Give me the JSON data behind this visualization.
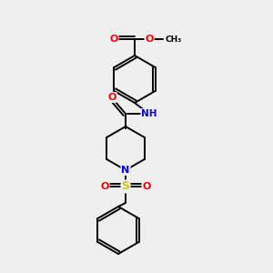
{
  "background_color": "#efefef",
  "bond_color": "#000000",
  "atom_colors": {
    "O": "#ff0000",
    "N": "#0000ff",
    "S": "#cccc00",
    "C": "#000000",
    "H": "#008080"
  },
  "figsize": [
    3.0,
    3.0
  ],
  "dpi": 100,
  "lw": 1.4
}
